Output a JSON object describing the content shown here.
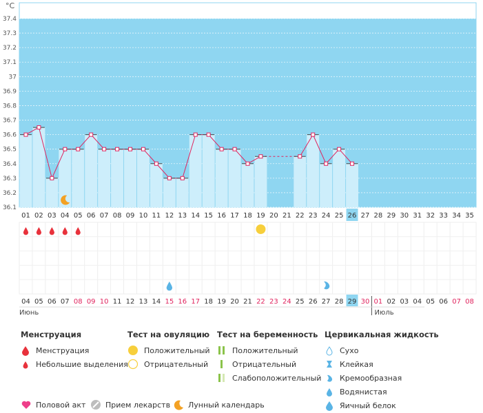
{
  "chart_data": {
    "type": "line",
    "ylabel": "°C",
    "ylim": [
      36.1,
      37.4
    ],
    "y_ticks": [
      "37.4",
      "37.3",
      "37.2",
      "37.1",
      "37",
      "36.9",
      "36.8",
      "36.7",
      "36.6",
      "36.5",
      "36.4",
      "36.3",
      "36.2",
      "36.1"
    ],
    "cycle_days": [
      "01",
      "02",
      "03",
      "04",
      "05",
      "06",
      "07",
      "08",
      "09",
      "10",
      "11",
      "12",
      "13",
      "14",
      "15",
      "16",
      "17",
      "18",
      "19",
      "20",
      "21",
      "22",
      "23",
      "24",
      "25",
      "26",
      "27",
      "28",
      "29",
      "30",
      "31",
      "32",
      "33",
      "34",
      "35"
    ],
    "current_cycle_day": "26",
    "dates": [
      "04",
      "05",
      "06",
      "07",
      "08",
      "09",
      "10",
      "11",
      "12",
      "13",
      "14",
      "15",
      "16",
      "17",
      "18",
      "19",
      "20",
      "21",
      "22",
      "23",
      "24",
      "25",
      "26",
      "27",
      "28",
      "29",
      "30",
      "01",
      "02",
      "03",
      "04",
      "05",
      "06",
      "07",
      "08"
    ],
    "weekend_dates": [
      "08",
      "09",
      "10",
      "15",
      "16",
      "17",
      "22",
      "23",
      "24",
      "30",
      "01",
      "07",
      "08"
    ],
    "current_date": "29",
    "month_start": "Июнь",
    "month_next": "Июль",
    "temperatures": [
      36.6,
      36.65,
      36.3,
      36.5,
      36.5,
      36.6,
      36.5,
      36.5,
      36.5,
      36.5,
      36.4,
      36.3,
      36.3,
      36.6,
      36.6,
      36.5,
      36.5,
      36.4,
      36.45,
      null,
      null,
      36.45,
      36.6,
      36.4,
      36.5,
      36.4
    ],
    "series_color": "#e0245e",
    "fill_color": "#cdeefb",
    "band_color": "#8fd6f1"
  },
  "legend": {
    "menstruation": {
      "title": "Менструация",
      "items": [
        "Менструация",
        "Небольшие выделения"
      ]
    },
    "ovulation": {
      "title": "Тест на овуляцию",
      "items": [
        "Положительный",
        "Отрицательный"
      ]
    },
    "pregnancy": {
      "title": "Тест на беременность",
      "items": [
        "Положительный",
        "Отрицательный",
        "Слабоположительный"
      ]
    },
    "cervical": {
      "title": "Цервикальная жидкость",
      "items": [
        "Сухо",
        "Клейкая",
        "Кремообразная",
        "Водянистая",
        "Яичный белок"
      ]
    },
    "bottom": [
      "Половой акт",
      "Прием лекарств",
      "Лунный календарь"
    ]
  }
}
